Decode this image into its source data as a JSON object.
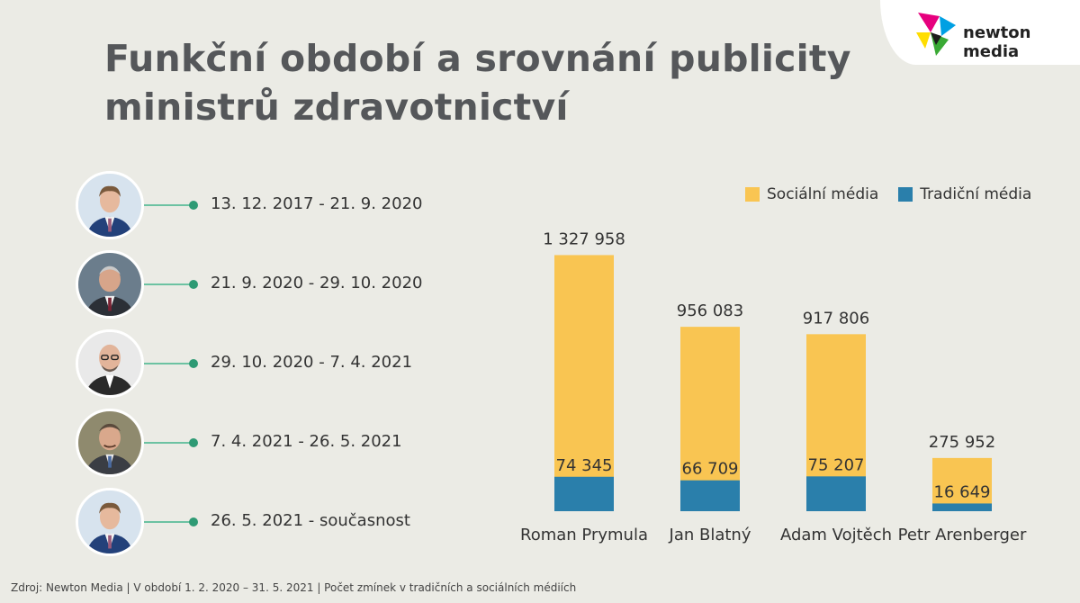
{
  "header": {
    "title_line1": "Funkční období a srovnání publicity",
    "title_line2": "ministrů zdravotnictví",
    "logo_text": "newton media"
  },
  "timeline": [
    {
      "label": "13. 12. 2017 - 21. 9. 2020",
      "icon": "portrait-icon"
    },
    {
      "label": "21. 9. 2020 - 29. 10. 2020",
      "icon": "portrait-icon"
    },
    {
      "label": "29. 10. 2020 - 7. 4. 2021",
      "icon": "portrait-icon"
    },
    {
      "label": "7. 4. 2021 - 26. 5. 2021",
      "icon": "portrait-icon"
    },
    {
      "label": "26. 5. 2021 - současnost",
      "icon": "portrait-icon"
    }
  ],
  "colors": {
    "social": "#f9c552",
    "traditional": "#2a7fab",
    "connector": "#6cc2a2",
    "dot": "#2e9a74"
  },
  "chart_data": {
    "type": "bar",
    "stacked": true,
    "categories": [
      "Roman Prymula",
      "Jan Blatný",
      "Adam Vojtěch",
      "Petr Arenberger"
    ],
    "series": [
      {
        "name": "Tradiční média",
        "values": [
          74345,
          66709,
          75207,
          16649
        ],
        "labels": [
          "74 345",
          "66 709",
          "75 207",
          "16 649"
        ]
      },
      {
        "name": "Sociální média",
        "values": [
          1327958,
          956083,
          917806,
          275952
        ],
        "labels": [
          "1 327 958",
          "956 083",
          "917 806",
          "275 952"
        ]
      }
    ],
    "ylim": [
      0,
      1400000
    ],
    "grid": false,
    "legend": "top-right"
  },
  "footer": {
    "source": "Zdroj: Newton Media | V období 1. 2. 2020 – 31. 5. 2021 | Počet zmínek v tradičních a sociálních médiích"
  }
}
